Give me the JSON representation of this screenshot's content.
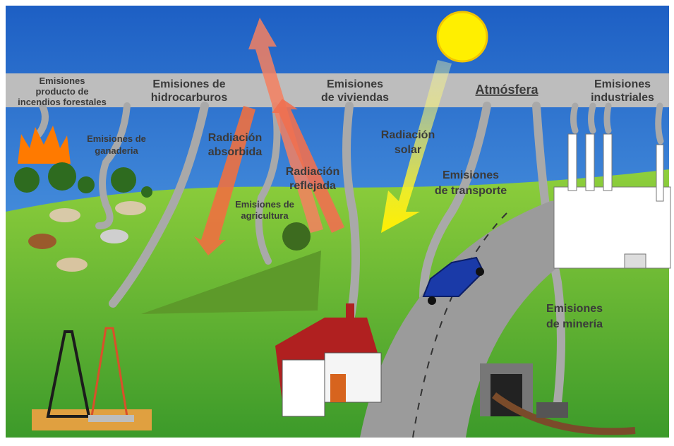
{
  "labels": [
    {
      "lines": [
        "Emisiones",
        "producto de",
        "incendios forestales"
      ]
    },
    {
      "lines": [
        "Emisiones de",
        "hidrocarburos"
      ]
    },
    {
      "lines": [
        "Emisiones",
        "de viviendas"
      ]
    },
    {
      "lines": [
        "Atmósfera"
      ]
    },
    {
      "lines": [
        "Emisiones",
        "industriales"
      ]
    },
    {
      "lines": [
        "Emisiones de",
        "ganaderia"
      ]
    },
    {
      "lines": [
        "Radiación",
        "absorbida"
      ]
    },
    {
      "lines": [
        "Radiación",
        "reflejada"
      ]
    },
    {
      "lines": [
        "Radiación",
        "solar"
      ]
    },
    {
      "lines": [
        "Emisiones de",
        "agricultura"
      ]
    },
    {
      "lines": [
        "Emisiones",
        "de transporte"
      ]
    },
    {
      "lines": [
        "Emisiones",
        "de minería"
      ]
    }
  ]
}
